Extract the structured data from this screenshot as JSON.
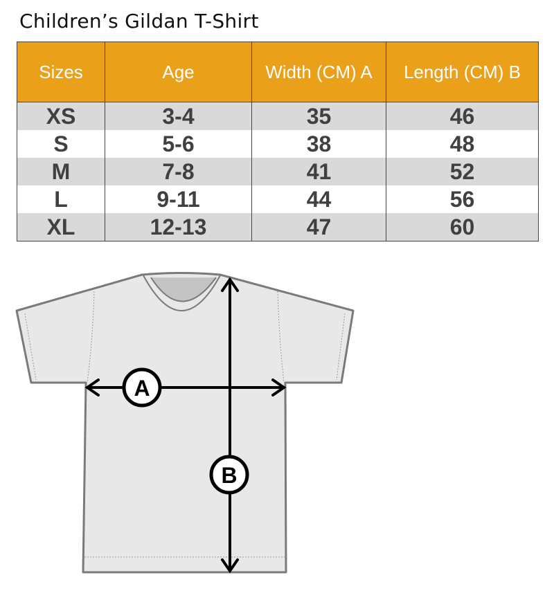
{
  "title": "Children’s Gildan T-Shirt",
  "table": {
    "headers": [
      "Sizes",
      "Age",
      "Width (CM) A",
      "Length  (CM) B"
    ],
    "rows": [
      [
        "XS",
        "3-4",
        "35",
        "46"
      ],
      [
        "S",
        "5-6",
        "38",
        "48"
      ],
      [
        "M",
        "7-8",
        "41",
        "52"
      ],
      [
        "L",
        "9-11",
        "44",
        "56"
      ],
      [
        "XL",
        "12-13",
        "47",
        "60"
      ]
    ]
  },
  "diagram": {
    "label_a": "A",
    "label_b": "B"
  },
  "colors": {
    "header": "#EBA019",
    "stripe": "#D9D9D9",
    "shirt": "#E8E8E8"
  }
}
